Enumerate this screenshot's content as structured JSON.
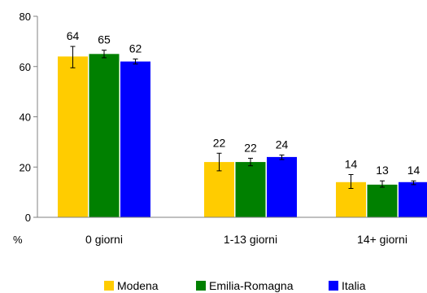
{
  "chart_data": {
    "type": "bar",
    "y_unit_label": "%",
    "ylim": [
      0,
      80
    ],
    "yticks": [
      0,
      20,
      40,
      60,
      80
    ],
    "grid": false,
    "legend_position": "bottom",
    "categories": [
      "0 giorni",
      "1-13 giorni",
      "14+ giorni"
    ],
    "series": [
      {
        "name": "Modena",
        "color": "#FFCC00",
        "values": [
          64,
          22,
          14
        ],
        "error_low": [
          59.5,
          18.5,
          11.5
        ],
        "error_high": [
          68,
          25.5,
          17
        ]
      },
      {
        "name": "Emilia-Romagna",
        "color": "#008000",
        "values": [
          65,
          22,
          13
        ],
        "error_low": [
          63.5,
          20.5,
          12
        ],
        "error_high": [
          66.5,
          23.5,
          14.5
        ]
      },
      {
        "name": "Italia",
        "color": "#0000FF",
        "values": [
          62,
          24,
          14
        ],
        "error_low": [
          61,
          23,
          13
        ],
        "error_high": [
          63,
          24.8,
          14.5
        ]
      }
    ]
  }
}
